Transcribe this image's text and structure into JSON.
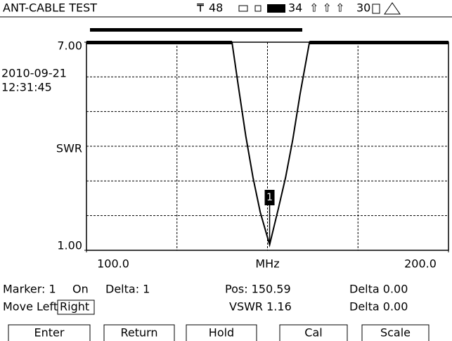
{
  "header": {
    "title": "ANT-CABLE TEST",
    "signal": "48",
    "battery": "34",
    "gps": "30"
  },
  "chart_data": {
    "type": "line",
    "ylabel": "SWR",
    "xlabel": "MHz",
    "date": "2010-09-21",
    "time": "12:31:45",
    "xlim": [
      100,
      200
    ],
    "ylim": [
      1,
      7
    ],
    "xticks": [
      {
        "value": 100,
        "label": "100.0"
      },
      {
        "value": 200,
        "label": "200.0"
      }
    ],
    "xgrid": [
      125,
      150,
      175
    ],
    "yticks": [
      {
        "value": 7,
        "label": "7.00"
      },
      {
        "value": 1,
        "label": "1.00"
      }
    ],
    "ygrid": [
      2,
      3,
      4,
      5,
      6
    ],
    "color": "#000000",
    "x": [
      100,
      140.2,
      142,
      144,
      146,
      148,
      150.59,
      153,
      155,
      157,
      159,
      161.6,
      200
    ],
    "values": [
      7,
      7,
      5.7,
      4.3,
      3.1,
      2.1,
      1.16,
      2.2,
      3.1,
      4.2,
      5.5,
      7,
      7
    ],
    "marker": {
      "label": "1",
      "x": 150.59,
      "value": 1.16
    }
  },
  "status": {
    "marker": "Marker: 1",
    "state": "On",
    "delta_marker": "Delta: 1",
    "pos": "Pos: 150.59",
    "delta1": "Delta 0.00",
    "move": "Move Left",
    "right": "Right",
    "vswr": "VSWR 1.16",
    "delta2": "Delta 0.00"
  },
  "buttons": [
    "Enter",
    "Return",
    "Hold",
    "Cal",
    "Scale"
  ]
}
